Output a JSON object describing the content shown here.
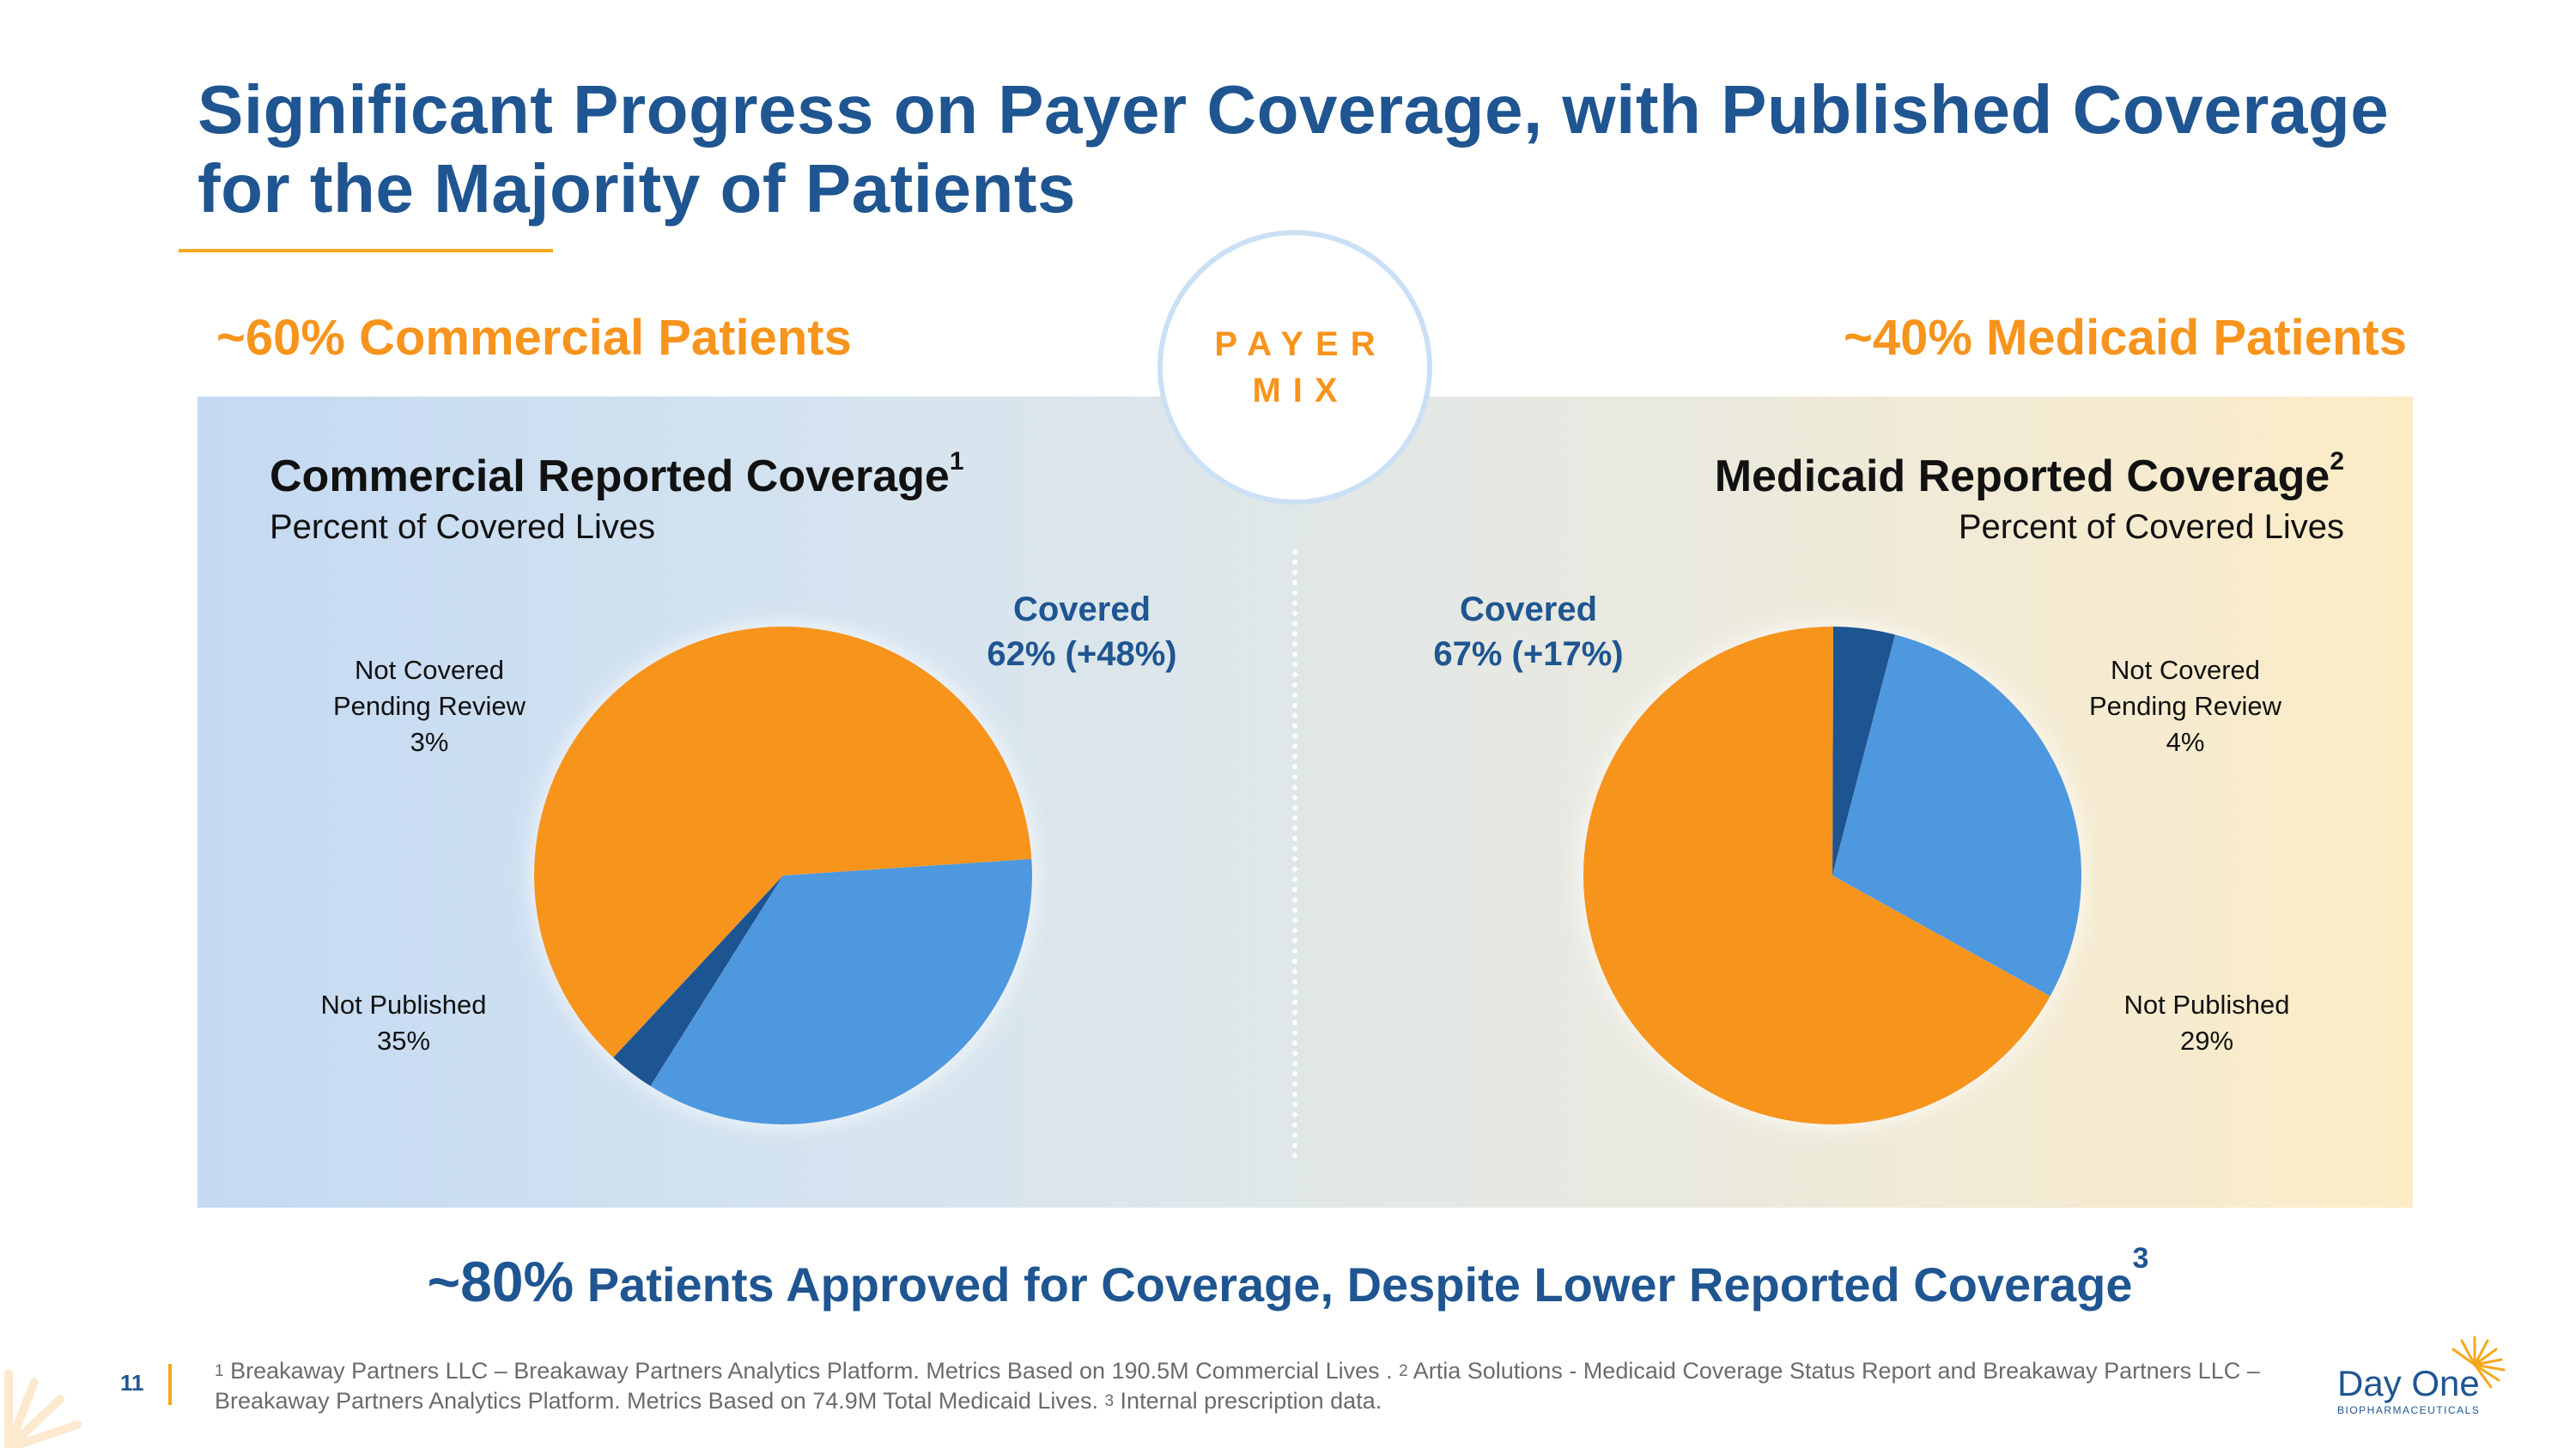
{
  "slide": {
    "title": "Significant Progress on Payer Coverage, with Published Coverage for the Majority of Patients",
    "page_number": "11"
  },
  "payer_mix": {
    "line1": "PAYER",
    "line2": "MIX"
  },
  "segments": {
    "left_header": "~60% Commercial Patients",
    "right_header": "~40% Medicaid Patients"
  },
  "commercial": {
    "title": "Commercial Reported Coverage",
    "footnote_ref": "1",
    "subtitle": "Percent of Covered Lives",
    "covered_label": "Covered",
    "covered_value": "62% (+48%)",
    "pending_label_1": "Not Covered",
    "pending_label_2": "Pending Review",
    "pending_value": "3%",
    "notpub_label": "Not Published",
    "notpub_value": "35%"
  },
  "medicaid": {
    "title": "Medicaid Reported Coverage",
    "footnote_ref": "2",
    "subtitle": "Percent of Covered Lives",
    "covered_label": "Covered",
    "covered_value": "67% (+17%)",
    "pending_label_1": "Not Covered",
    "pending_label_2": "Pending Review",
    "pending_value": "4%",
    "notpub_label": "Not Published",
    "notpub_value": "29%"
  },
  "bottom": {
    "big": "~80%",
    "rest": " Patients Approved for Coverage, Despite Lower Reported Coverage",
    "footnote_ref": "3"
  },
  "footnote": {
    "ref1": "1",
    "text1": " Breakaway Partners LLC – Breakaway Partners Analytics Platform. Metrics Based on 190.5M Commercial Lives . ",
    "ref2": "2",
    "text2": " Artia Solutions - Medicaid Coverage Status Report and Breakaway Partners LLC – Breakaway Partners Analytics Platform. Metrics Based on 74.9M Total Medicaid Lives.  ",
    "ref3": "3",
    "text3": " Internal prescription data."
  },
  "logo": {
    "name": "Day One",
    "tagline": "BIOPHARMACEUTICALS"
  },
  "colors": {
    "covered": "#f7941d",
    "pending": "#1f5591",
    "not_published": "#4e98de",
    "title": "#1f5591",
    "accent": "#f6a81d"
  },
  "chart_data": [
    {
      "type": "pie",
      "title": "Commercial Reported Coverage",
      "subtitle": "Percent of Covered Lives",
      "slices": [
        {
          "name": "Covered",
          "value": 62,
          "color": "#f7941d"
        },
        {
          "name": "Not Published",
          "value": 35,
          "color": "#4e98de"
        },
        {
          "name": "Not Covered Pending Review",
          "value": 3,
          "color": "#1f5591"
        }
      ]
    },
    {
      "type": "pie",
      "title": "Medicaid Reported Coverage",
      "subtitle": "Percent of Covered Lives",
      "slices": [
        {
          "name": "Covered",
          "value": 67,
          "color": "#f7941d"
        },
        {
          "name": "Not Covered Pending Review",
          "value": 4,
          "color": "#1f5591"
        },
        {
          "name": "Not Published",
          "value": 29,
          "color": "#4e98de"
        }
      ]
    }
  ]
}
